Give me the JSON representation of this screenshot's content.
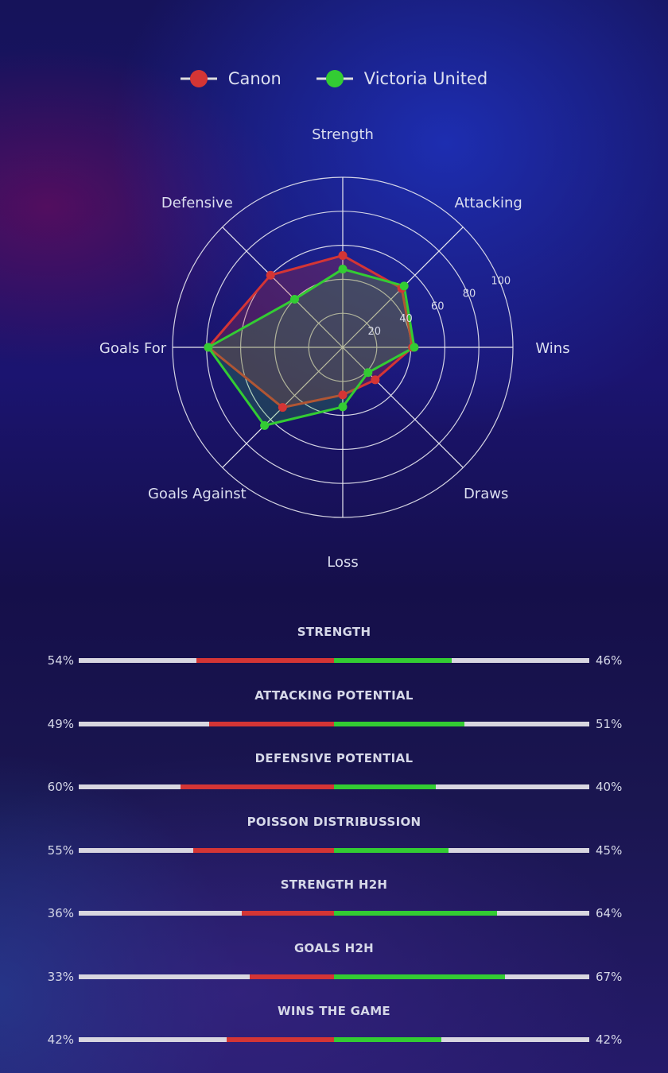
{
  "colors": {
    "canon": "#d43535",
    "victoria": "#33cc33",
    "grid": "#e8e8f0",
    "track": "#d8d6e0"
  },
  "chart_data": {
    "type": "radar",
    "categories": [
      "Strength",
      "Attacking",
      "Wins",
      "Draws",
      "Loss",
      "Goals Against",
      "Goals For",
      "Defensive"
    ],
    "radial_ticks": [
      20,
      40,
      60,
      80,
      100
    ],
    "rlim": [
      0,
      100
    ],
    "legend_position": "top",
    "series": [
      {
        "name": "Canon",
        "color": "#d43535",
        "values": [
          54,
          49,
          41,
          27,
          28,
          50,
          79,
          60
        ]
      },
      {
        "name": "Victoria United",
        "color": "#33cc33",
        "values": [
          46,
          51,
          42,
          21,
          35,
          65,
          79,
          40
        ]
      }
    ]
  },
  "legend": [
    "Canon",
    "Victoria United"
  ],
  "comparisons": [
    {
      "title": "STRENGTH",
      "left": "54%",
      "right": "46%",
      "left_value": 54,
      "right_value": 46
    },
    {
      "title": "ATTACKING POTENTIAL",
      "left": "49%",
      "right": "51%",
      "left_value": 49,
      "right_value": 51
    },
    {
      "title": "DEFENSIVE POTENTIAL",
      "left": "60%",
      "right": "40%",
      "left_value": 60,
      "right_value": 40
    },
    {
      "title": "POISSON DISTRIBUSSION",
      "left": "55%",
      "right": "45%",
      "left_value": 55,
      "right_value": 45
    },
    {
      "title": "STRENGTH H2H",
      "left": "36%",
      "right": "64%",
      "left_value": 36,
      "right_value": 64
    },
    {
      "title": "GOALS H2H",
      "left": "33%",
      "right": "67%",
      "left_value": 33,
      "right_value": 67
    },
    {
      "title": "WINS THE GAME",
      "left": "42%",
      "right": "42%",
      "left_value": 42,
      "right_value": 42
    }
  ]
}
